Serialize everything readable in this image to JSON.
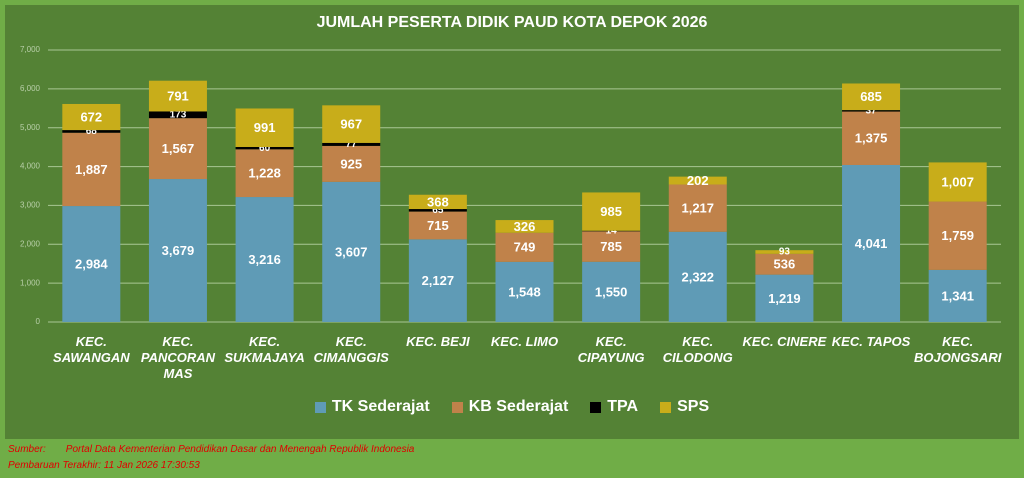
{
  "chart_data": {
    "type": "stacked_bar",
    "title": "JUMLAH PESERTA DIDIK PAUD KOTA DEPOK  2026",
    "categories": [
      "KEC. SAWANGAN",
      "KEC. PANCORAN MAS",
      "KEC. SUKMAJAYA",
      "KEC. CIMANGGIS",
      "KEC. BEJI",
      "KEC. LIMO",
      "KEC. CIPAYUNG",
      "KEC. CILODONG",
      "KEC. CINERE",
      "KEC. TAPOS",
      "KEC. BOJONGSARI"
    ],
    "series": [
      {
        "name": "TK Sederajat",
        "color": "#5f9bb6",
        "label_color": "#ffffff",
        "values": [
          2984,
          3679,
          3216,
          3607,
          2127,
          1548,
          1550,
          2322,
          1219,
          4041,
          1341
        ],
        "value_labels": [
          "2,984",
          "3,679",
          "3,216",
          "3,607",
          "2,127",
          "1,548",
          "1,550",
          "2,322",
          "1,219",
          "4,041",
          "1,341"
        ]
      },
      {
        "name": "KB Sederajat",
        "color": "#c0824a",
        "label_color": "#ffffff",
        "values": [
          1887,
          1567,
          1228,
          925,
          715,
          749,
          785,
          1217,
          536,
          1375,
          1759
        ],
        "value_labels": [
          "1,887",
          "1,567",
          "1,228",
          "925",
          "715",
          "749",
          "785",
          "1,217",
          "536",
          "1,375",
          "1,759"
        ]
      },
      {
        "name": "TPA",
        "color": "#000000",
        "label_color": "#ffffff",
        "values": [
          68,
          173,
          60,
          77,
          65,
          null,
          14,
          null,
          null,
          37,
          null
        ],
        "value_labels": [
          "68",
          "173",
          "60",
          "77",
          "65",
          null,
          "14",
          null,
          null,
          "37",
          null
        ]
      },
      {
        "name": "SPS",
        "color": "#c8ad1a",
        "label_color": "#ffffff",
        "values": [
          672,
          791,
          991,
          967,
          368,
          326,
          985,
          202,
          93,
          685,
          1007
        ],
        "value_labels": [
          "672",
          "791",
          "991",
          "967",
          "368",
          "326",
          "985",
          "202",
          "93",
          "685",
          "1,007"
        ]
      }
    ],
    "ylim": [
      0,
      7000
    ],
    "yticks": [
      0,
      {
        "value": 1000,
        "label": "1,000"
      },
      {
        "value": 2000,
        "label": "2,000"
      },
      {
        "value": 3000,
        "label": "3,000"
      },
      {
        "value": 4000,
        "label": "4,000"
      },
      {
        "value": 5000,
        "label": "5,000"
      },
      {
        "value": 6000,
        "label": "6,000"
      },
      {
        "value": 7000,
        "label": "7,000"
      }
    ],
    "grid": true,
    "legend": "bottom"
  },
  "footer": {
    "source_label": "Sumber:",
    "source": "Portal Data Kementerian Pendidikan Dasar dan Menengah Republik Indonesia",
    "updated": "Pembaruan Terakhir: 11 Jan 2026 17:30:53"
  }
}
